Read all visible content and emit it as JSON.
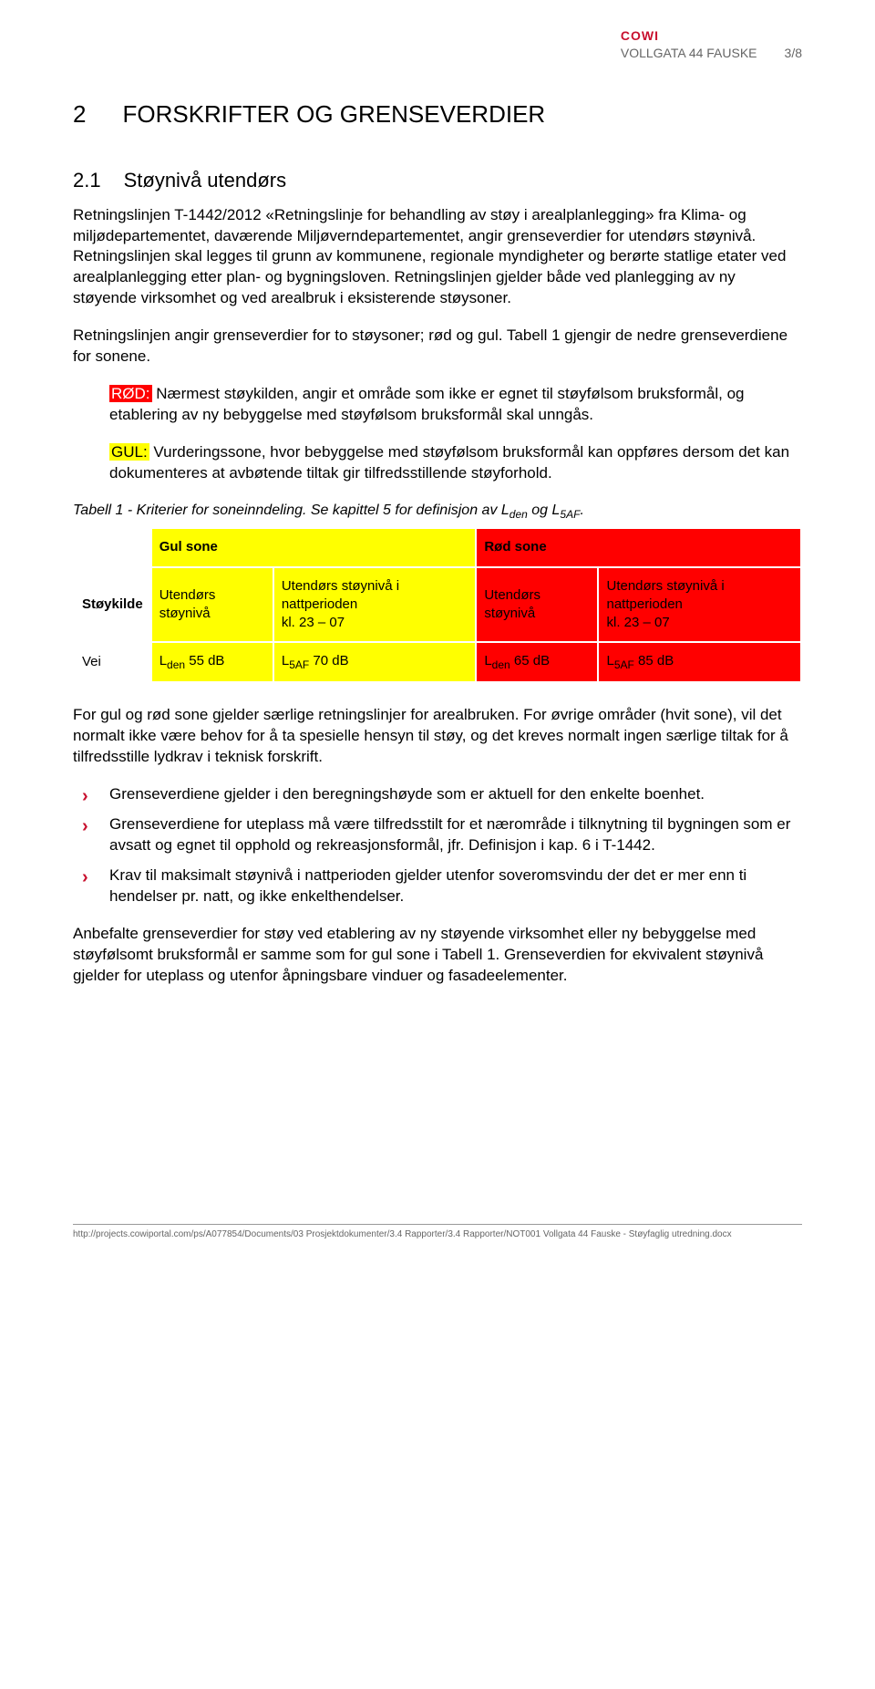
{
  "header": {
    "logo": "COWI",
    "title": "VOLLGATA 44 FAUSKE",
    "page": "3/8"
  },
  "section": {
    "num": "2",
    "title": "FORSKRIFTER OG GRENSEVERDIER"
  },
  "subsection": {
    "num": "2.1",
    "title": "Støynivå utendørs"
  },
  "para1": "Retningslinjen T-1442/2012 «Retningslinje for behandling av støy i arealplanlegging» fra Klima- og miljødepartementet, daværende Miljøverndepartementet, angir grenseverdier for utendørs støynivå. Retningslinjen skal legges til grunn av kommunene, regionale myndigheter og berørte statlige etater ved arealplanlegging etter plan- og bygningsloven. Retningslinjen gjelder både ved planlegging av ny støyende virksomhet og ved arealbruk i eksisterende støysoner.",
  "para2": "Retningslinjen angir grenseverdier for to støysoner; rød og gul. Tabell 1 gjengir de nedre grenseverdiene for sonene.",
  "red_label": "RØD:",
  "red_text": " Nærmest støykilden, angir et område som ikke er egnet til støyfølsom bruksformål, og etablering av ny bebyggelse med støyfølsom bruksformål skal unngås.",
  "yellow_label": "GUL:",
  "yellow_text": " Vurderingssone, hvor bebyggelse med støyfølsom bruksformål kan oppføres dersom det kan dokumenteres at avbøtende tiltak gir tilfredsstillende støyforhold.",
  "table_caption_prefix": "Tabell 1 - Kriterier for soneinndeling. Se kapittel 5 for definisjon av L",
  "table_caption_sub1": "den",
  "table_caption_mid": " og L",
  "table_caption_sub2": "5AF",
  "table_caption_suffix": ".",
  "table": {
    "header_yellow": "Gul sone",
    "header_red": "Rød sone",
    "row_labels": {
      "source": "Støykilde",
      "col1": "Utendørs støynivå",
      "col2a": "Utendørs støynivå i nattperioden",
      "col2b": "kl. 23 – 07",
      "col3": "Utendørs støynivå",
      "col4a": "Utendørs støynivå i nattperioden",
      "col4b": "kl. 23 – 07"
    },
    "data_row": {
      "source": "Vei",
      "v1a": "L",
      "v1sub": "den",
      "v1b": " 55 dB",
      "v2a": "L",
      "v2sub": "5AF",
      "v2b": " 70 dB",
      "v3a": "L",
      "v3sub": "den",
      "v3b": " 65 dB",
      "v4a": "L",
      "v4sub": "5AF",
      "v4b": " 85 dB"
    }
  },
  "para3": "For gul og rød sone gjelder særlige retningslinjer for arealbruken. For øvrige områder (hvit sone), vil det normalt ikke være behov for å ta spesielle hensyn til støy, og det kreves normalt ingen særlige tiltak for å tilfredsstille lydkrav i teknisk forskrift.",
  "bullets": [
    "Grenseverdiene gjelder i den beregningshøyde som er aktuell for den enkelte boenhet.",
    "Grenseverdiene for uteplass må være tilfredsstilt for et nærområde i tilknytning til bygningen som er avsatt og egnet til opphold og rekreasjonsformål, jfr. Definisjon i kap. 6 i T-1442.",
    "Krav til maksimalt støynivå i nattperioden gjelder utenfor soveromsvindu der det er mer enn ti hendelser pr. natt, og ikke enkelthendelser."
  ],
  "para4": "Anbefalte grenseverdier for støy ved etablering av ny støyende virksomhet eller ny bebyggelse med støyfølsomt bruksformål er samme som for gul sone i Tabell 1. Grenseverdien for ekvivalent støynivå gjelder for uteplass og utenfor åpningsbare vinduer og fasadeelementer.",
  "footer": "http://projects.cowiportal.com/ps/A077854/Documents/03 Prosjektdokumenter/3.4 Rapporter/3.4 Rapporter/NOT001 Vollgata 44 Fauske - Støyfaglig utredning.docx"
}
